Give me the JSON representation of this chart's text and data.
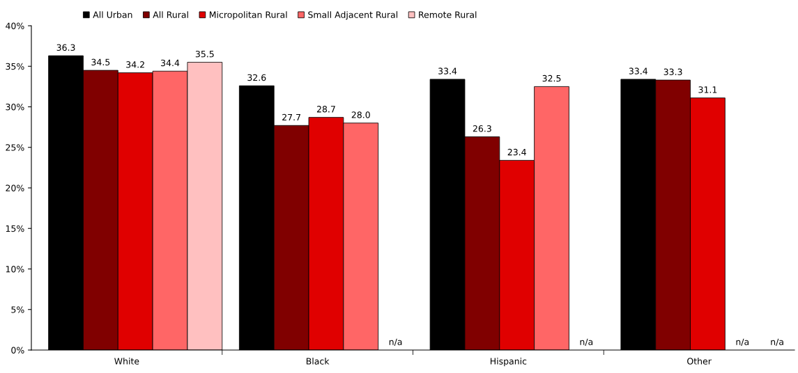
{
  "chart_data": {
    "type": "bar",
    "categories": [
      "White",
      "Black",
      "Hispanic",
      "Other"
    ],
    "series": [
      {
        "name": "All Urban",
        "color": "#000000",
        "values": [
          36.3,
          32.6,
          33.4,
          33.4
        ],
        "value_labels": [
          "36.3",
          "32.6",
          "33.4",
          "33.4"
        ]
      },
      {
        "name": "All Rural",
        "color": "#800000",
        "values": [
          34.5,
          27.7,
          26.3,
          33.3
        ],
        "value_labels": [
          "34.5",
          "27.7",
          "26.3",
          "33.3"
        ]
      },
      {
        "name": "Micropolitan Rural",
        "color": "#e00000",
        "values": [
          34.2,
          28.7,
          23.4,
          31.1
        ],
        "value_labels": [
          "34.2",
          "28.7",
          "23.4",
          "31.1"
        ]
      },
      {
        "name": "Small Adjacent Rural",
        "color": "#ff6666",
        "values": [
          34.4,
          28.0,
          32.5,
          null
        ],
        "value_labels": [
          "34.4",
          "28.0",
          "32.5",
          "n/a"
        ]
      },
      {
        "name": "Remote Rural",
        "color": "#ffc0c0",
        "values": [
          35.5,
          null,
          null,
          null
        ],
        "value_labels": [
          "35.5",
          "n/a",
          "n/a",
          "n/a"
        ]
      }
    ],
    "ylim": [
      0,
      40
    ],
    "yticks": [
      {
        "value": 0,
        "label": "0%"
      },
      {
        "value": 5,
        "label": "5%"
      },
      {
        "value": 10,
        "label": "10%"
      },
      {
        "value": 15,
        "label": "15%"
      },
      {
        "value": 20,
        "label": "20%"
      },
      {
        "value": 25,
        "label": "25%"
      },
      {
        "value": 30,
        "label": "30%"
      },
      {
        "value": 35,
        "label": "35%"
      },
      {
        "value": 40,
        "label": "40%"
      }
    ],
    "legend": "top left",
    "grid": false
  }
}
